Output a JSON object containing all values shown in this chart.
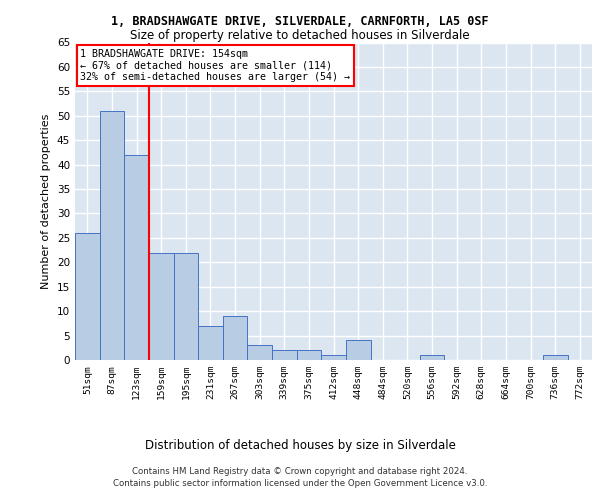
{
  "title_line1": "1, BRADSHAWGATE DRIVE, SILVERDALE, CARNFORTH, LA5 0SF",
  "title_line2": "Size of property relative to detached houses in Silverdale",
  "xlabel": "Distribution of detached houses by size in Silverdale",
  "ylabel": "Number of detached properties",
  "categories": [
    "51sqm",
    "87sqm",
    "123sqm",
    "159sqm",
    "195sqm",
    "231sqm",
    "267sqm",
    "303sqm",
    "339sqm",
    "375sqm",
    "412sqm",
    "448sqm",
    "484sqm",
    "520sqm",
    "556sqm",
    "592sqm",
    "628sqm",
    "664sqm",
    "700sqm",
    "736sqm",
    "772sqm"
  ],
  "values": [
    26,
    51,
    42,
    22,
    22,
    7,
    9,
    3,
    2,
    2,
    1,
    4,
    0,
    0,
    1,
    0,
    0,
    0,
    0,
    1,
    0
  ],
  "bar_color": "#b8cce4",
  "bar_edge_color": "#4472c4",
  "background_color": "#dce6f1",
  "grid_color": "#ffffff",
  "property_line_x": 2.5,
  "annotation_text_line1": "1 BRADSHAWGATE DRIVE: 154sqm",
  "annotation_text_line2": "← 67% of detached houses are smaller (114)",
  "annotation_text_line3": "32% of semi-detached houses are larger (54) →",
  "annotation_box_color": "#ffffff",
  "annotation_box_edge_color": "#ff0000",
  "vline_color": "#ff0000",
  "ylim": [
    0,
    65
  ],
  "yticks": [
    0,
    5,
    10,
    15,
    20,
    25,
    30,
    35,
    40,
    45,
    50,
    55,
    60,
    65
  ],
  "footer_line1": "Contains HM Land Registry data © Crown copyright and database right 2024.",
  "footer_line2": "Contains public sector information licensed under the Open Government Licence v3.0."
}
